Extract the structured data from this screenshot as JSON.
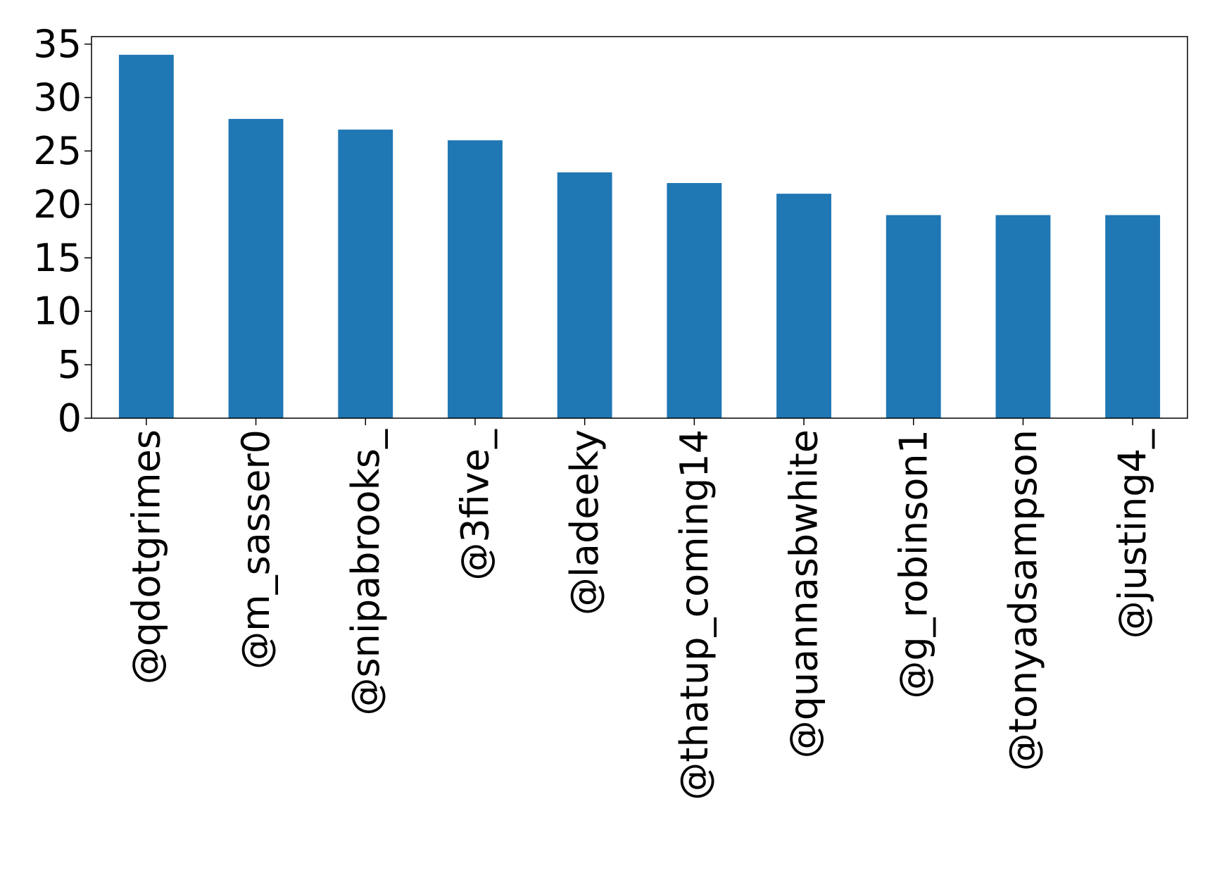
{
  "chart_data": {
    "type": "bar",
    "title": "",
    "xlabel": "",
    "ylabel": "",
    "categories": [
      "@qdotgrimes",
      "@m_sasser0",
      "@snipabrooks_",
      "@3five_",
      "@ladeeky",
      "@thatup_coming14",
      "@quannasbwhite",
      "@g_robinson1",
      "@tonyadsampson",
      "@justing4_"
    ],
    "values": [
      34,
      28,
      27,
      26,
      23,
      22,
      21,
      19,
      19,
      19
    ],
    "ylim": [
      0,
      35.7
    ],
    "yticks": [
      0,
      5,
      10,
      15,
      20,
      25,
      30,
      35
    ],
    "grid": false,
    "legend": "none",
    "colors": {
      "bar": "#1f77b4",
      "axis": "#000000",
      "background": "#ffffff"
    }
  }
}
